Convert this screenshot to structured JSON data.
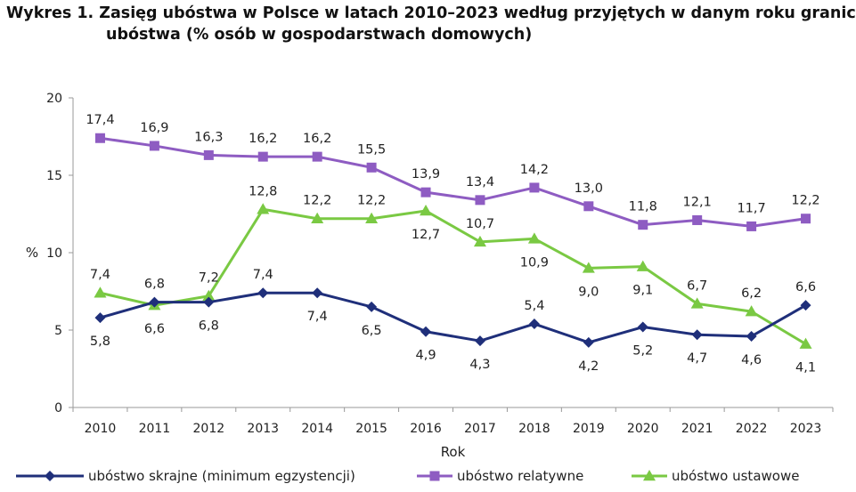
{
  "title": {
    "line1": "Wykres 1. Zasięg ubóstwa w Polsce w latach 2010–2023 według przyjętych w danym roku granic",
    "line2": "ubóstwa (% osób w gospodarstwach domowych)"
  },
  "chart_data": {
    "type": "line",
    "xlabel": "Rok",
    "ylabel": "%",
    "ylim": [
      0,
      20
    ],
    "yticks": [
      0,
      5,
      10,
      15,
      20
    ],
    "grid": false,
    "legend_position": "bottom",
    "categories": [
      "2010",
      "2011",
      "2012",
      "2013",
      "2014",
      "2015",
      "2016",
      "2017",
      "2018",
      "2019",
      "2020",
      "2021",
      "2022",
      "2023"
    ],
    "series": [
      {
        "name": "ubóstwo skrajne (minimum egzystencji)",
        "color": "#1f2f7a",
        "marker": "diamond",
        "values": [
          5.8,
          6.8,
          6.8,
          7.4,
          7.4,
          6.5,
          4.9,
          4.3,
          5.4,
          4.2,
          5.2,
          4.7,
          4.6,
          6.6
        ],
        "labels": [
          "5,8",
          "6,8",
          "6,8",
          "7,4",
          "7,4",
          "6,5",
          "4,9",
          "4,3",
          "5,4",
          "4,2",
          "5,2",
          "4,7",
          "4,6",
          "6,6"
        ],
        "label_pos": [
          "below",
          "above",
          "below",
          "above",
          "below",
          "below",
          "below",
          "below",
          "above",
          "below",
          "below",
          "below",
          "below",
          "above"
        ]
      },
      {
        "name": "ubóstwo relatywne",
        "color": "#8e5cc2",
        "marker": "square",
        "values": [
          17.4,
          16.9,
          16.3,
          16.2,
          16.2,
          15.5,
          13.9,
          13.4,
          14.2,
          13.0,
          11.8,
          12.1,
          11.7,
          12.2
        ],
        "labels": [
          "17,4",
          "16,9",
          "16,3",
          "16,2",
          "16,2",
          "15,5",
          "13,9",
          "13,4",
          "14,2",
          "13,0",
          "11,8",
          "12,1",
          "11,7",
          "12,2"
        ],
        "label_pos": [
          "above",
          "above",
          "above",
          "above",
          "above",
          "above",
          "above",
          "above",
          "above",
          "above",
          "above",
          "above",
          "above",
          "above"
        ]
      },
      {
        "name": "ubóstwo ustawowe",
        "color": "#7ac943",
        "marker": "triangle",
        "values": [
          7.4,
          6.6,
          7.2,
          12.8,
          12.2,
          12.2,
          12.7,
          10.7,
          10.9,
          9.0,
          9.1,
          6.7,
          6.2,
          4.1
        ],
        "labels": [
          "7,4",
          "6,6",
          "7,2",
          "12,8",
          "12,2",
          "12,2",
          "12,7",
          "10,7",
          "10,9",
          "9,0",
          "9,1",
          "6,7",
          "6,2",
          "4,1"
        ],
        "label_pos": [
          "above",
          "below",
          "above",
          "above",
          "above",
          "above",
          "below",
          "above",
          "below",
          "below",
          "below",
          "above",
          "above",
          "below"
        ]
      }
    ]
  }
}
